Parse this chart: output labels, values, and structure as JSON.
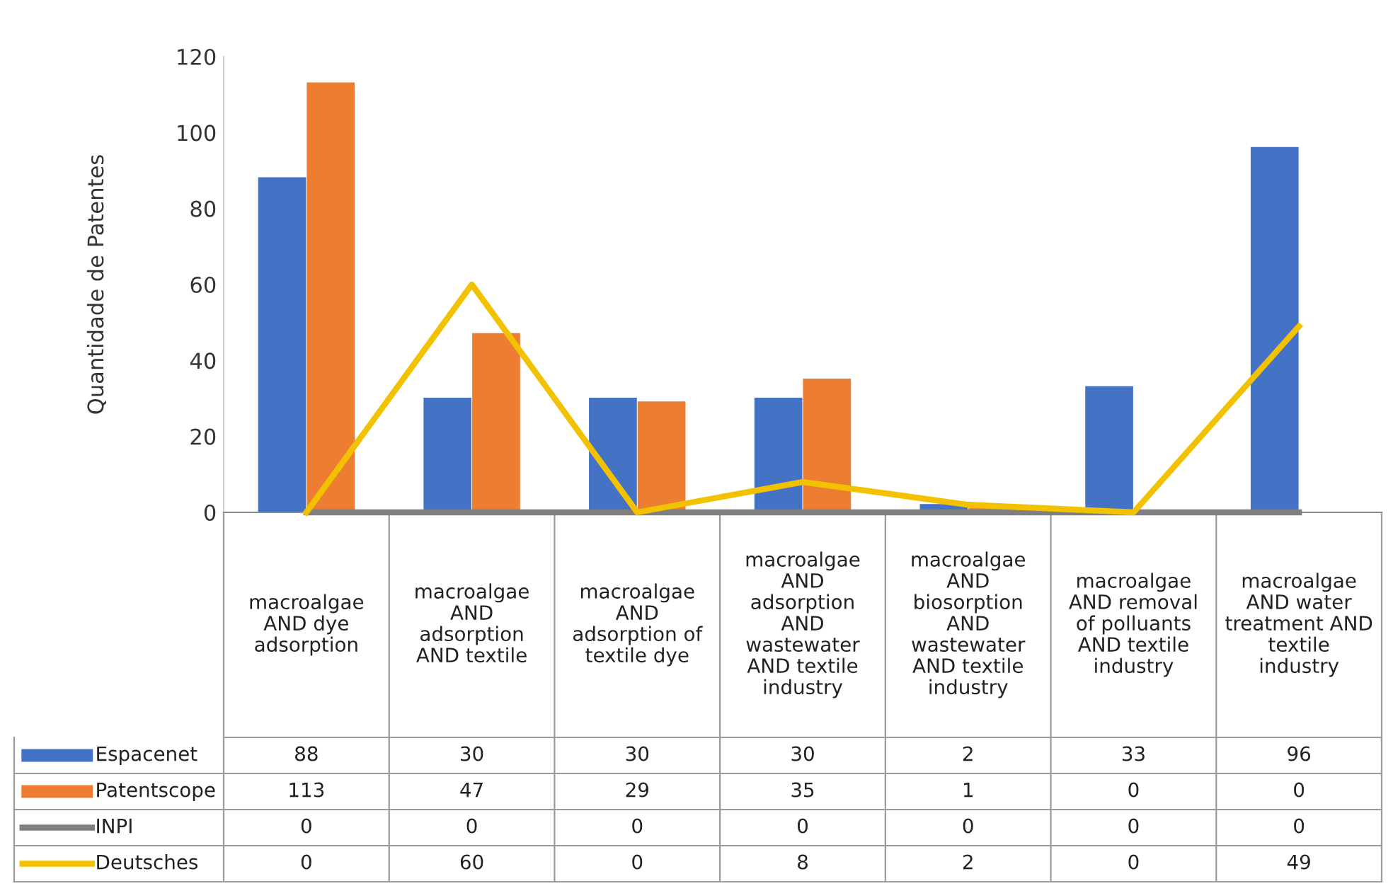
{
  "chart_data": {
    "type": "bar",
    "ylabel": "Quantidade de Patentes",
    "categories": [
      "macroalgae AND dye adsorption",
      "macroalgae AND adsorption AND textile",
      "macroalgae AND adsorption of textile dye",
      "macroalgae AND adsorption AND wastewater AND textile industry",
      "macroalgae AND biosorption AND wastewater AND textile industry",
      "macroalgae AND removal of polluants AND textile industry",
      "macroalgae AND water treatment AND textile industry"
    ],
    "series": [
      {
        "name": "Espacenet",
        "color": "#4472c4",
        "values": [
          88,
          30,
          30,
          30,
          2,
          33,
          96
        ]
      },
      {
        "name": "Patentscope",
        "color": "#ed7d31",
        "values": [
          113,
          47,
          29,
          35,
          1,
          0,
          0
        ]
      },
      {
        "name": "INPI",
        "type": "line",
        "color": "#7f7f7f",
        "values": [
          0,
          0,
          0,
          0,
          0,
          0,
          0
        ]
      },
      {
        "name": "Deutsches",
        "type": "line",
        "color": "#f2c200",
        "values": [
          0,
          60,
          0,
          8,
          2,
          0,
          49
        ]
      }
    ],
    "ylim": [
      0,
      120
    ],
    "yticks": [
      0,
      20,
      40,
      60,
      80,
      100,
      120
    ],
    "grid": false,
    "data_labels": true,
    "legend": "bottom left"
  }
}
